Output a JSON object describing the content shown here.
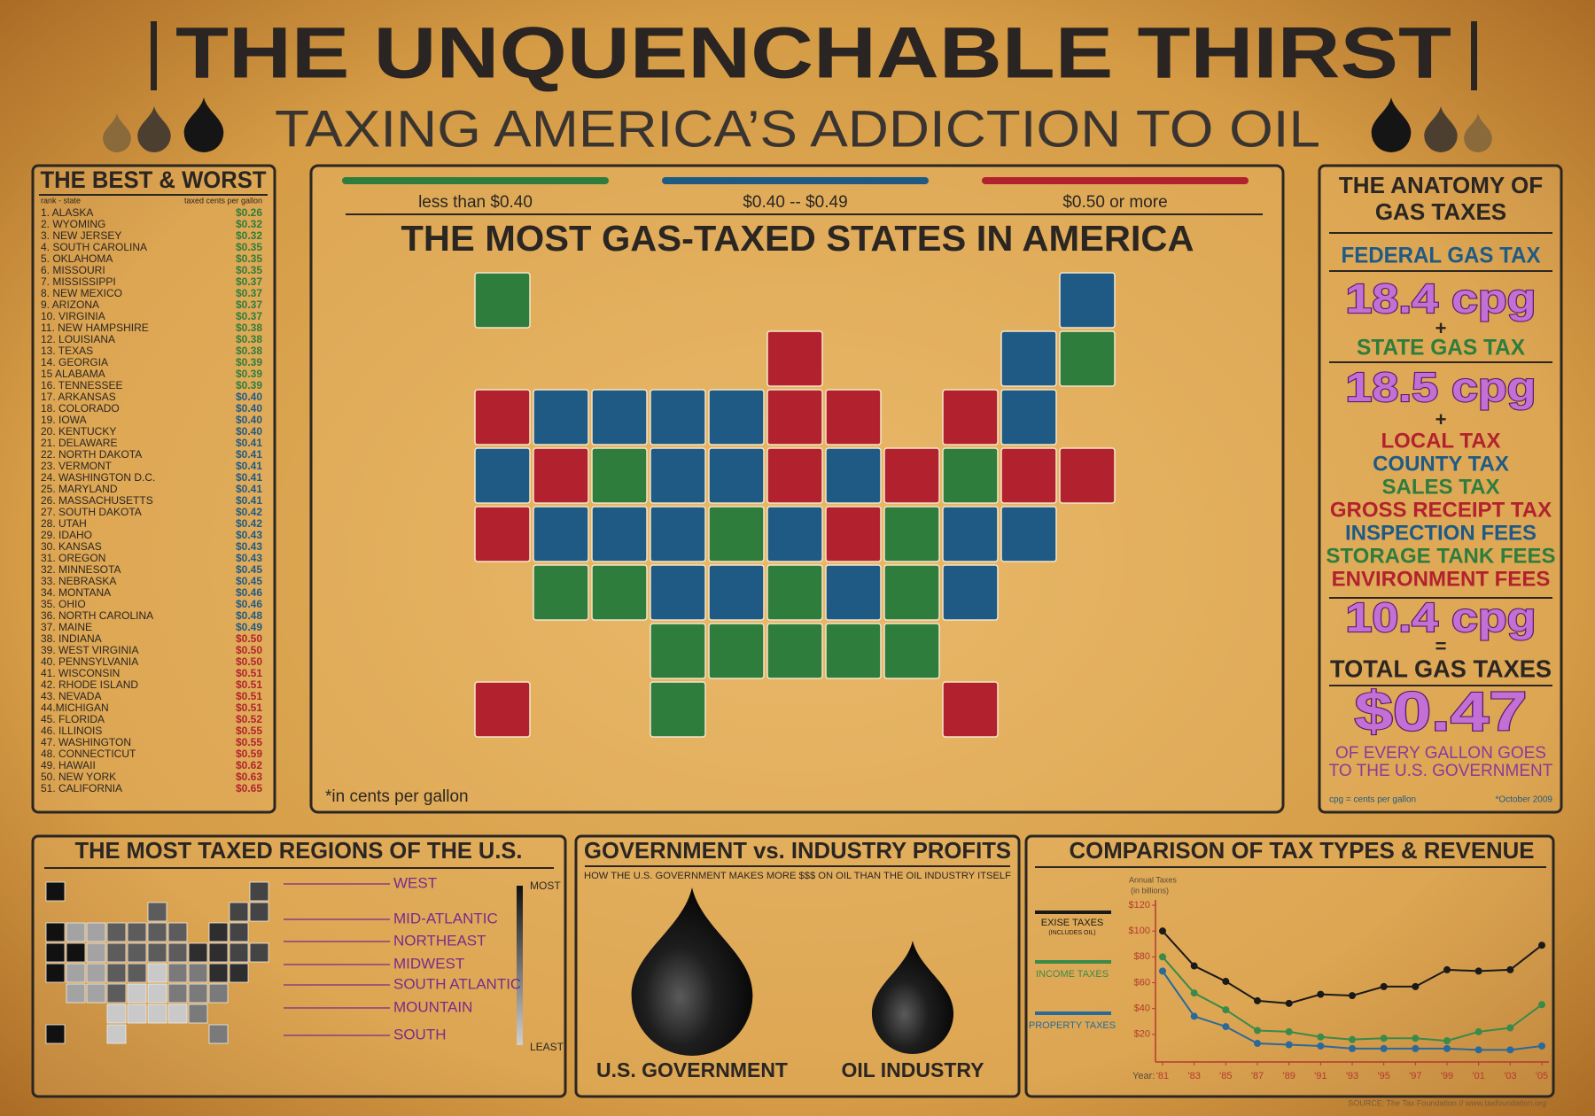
{
  "header": {
    "title": "THE UNQUENCHABLE THIRST",
    "subtitle": "TAXING AMERICA’S ADDICTION TO OIL"
  },
  "best_worst": {
    "title": "THE BEST & WORST",
    "col_rank": "rank - state",
    "col_value": "taxed cents per gallon",
    "groups": [
      {
        "rows": [
          [
            "1. ALASKA",
            "$0.26"
          ],
          [
            "2. WYOMING",
            "$0.32"
          ],
          [
            "3. NEW JERSEY",
            "$0.32"
          ],
          [
            "4. SOUTH CAROLINA",
            "$0.35"
          ],
          [
            "5. OKLAHOMA",
            "$0.35"
          ],
          [
            "6. MISSOURI",
            "$0.35"
          ],
          [
            "7. MISSISSIPPI",
            "$0.37"
          ],
          [
            "8. NEW MEXICO",
            "$0.37"
          ],
          [
            "9. ARIZONA",
            "$0.37"
          ],
          [
            "10. VIRGINIA",
            "$0.37"
          ],
          [
            "11. NEW HAMPSHIRE",
            "$0.38"
          ],
          [
            "12. LOUISIANA",
            "$0.38"
          ],
          [
            "13. TEXAS",
            "$0.38"
          ],
          [
            "14. GEORGIA",
            "$0.39"
          ],
          [
            "15 ALABAMA",
            "$0.39"
          ],
          [
            "16. TENNESSEE",
            "$0.39"
          ]
        ]
      },
      {
        "rows": [
          [
            "17. ARKANSAS",
            "$0.40"
          ],
          [
            "18. COLORADO",
            "$0.40"
          ],
          [
            "19. IOWA",
            "$0.40"
          ],
          [
            "20. KENTUCKY",
            "$0.40"
          ],
          [
            "21. DELAWARE",
            "$0.41"
          ],
          [
            "22. NORTH DAKOTA",
            "$0.41"
          ],
          [
            "23. VERMONT",
            "$0.41"
          ],
          [
            "24. WASHINGTON D.C.",
            "$0.41"
          ],
          [
            "25. MARYLAND",
            "$0.41"
          ],
          [
            "26. MASSACHUSETTS",
            "$0.41"
          ],
          [
            "27. SOUTH DAKOTA",
            "$0.42"
          ],
          [
            "28. UTAH",
            "$0.42"
          ],
          [
            "29. IDAHO",
            "$0.43"
          ],
          [
            "30. KANSAS",
            "$0.43"
          ],
          [
            "31. OREGON",
            "$0.43"
          ],
          [
            "32. MINNESOTA",
            "$0.45"
          ],
          [
            "33. NEBRASKA",
            "$0.45"
          ],
          [
            "34. MONTANA",
            "$0.46"
          ],
          [
            "35. OHIO",
            "$0.46"
          ],
          [
            "36. NORTH CAROLINA",
            "$0.48"
          ],
          [
            "37. MAINE",
            "$0.49"
          ]
        ]
      },
      {
        "rows": [
          [
            "38. INDIANA",
            "$0.50"
          ],
          [
            "39. WEST VIRGINIA",
            "$0.50"
          ],
          [
            "40. PENNSYLVANIA",
            "$0.50"
          ],
          [
            "41. WISCONSIN",
            "$0.51"
          ],
          [
            "42. RHODE ISLAND",
            "$0.51"
          ],
          [
            "43. NEVADA",
            "$0.51"
          ],
          [
            "44.MICHIGAN",
            "$0.51"
          ],
          [
            "45. FLORIDA",
            "$0.52"
          ],
          [
            "46. ILLINOIS",
            "$0.55"
          ],
          [
            "47. WASHINGTON",
            "$0.55"
          ],
          [
            "48. CONNECTICUT",
            "$0.59"
          ],
          [
            "49. HAWAII",
            "$0.62"
          ],
          [
            "50. NEW YORK",
            "$0.63"
          ],
          [
            "51. CALIFORNIA",
            "$0.65"
          ]
        ]
      }
    ]
  },
  "map": {
    "title": "THE MOST GAS-TAXED STATES IN AMERICA",
    "note": "*in cents per gallon",
    "legend": [
      {
        "label": "less than $0.40",
        "color": "#2e7d3c"
      },
      {
        "label": "$0.40 -- $0.49",
        "color": "#1f5a85"
      },
      {
        "label": "$0.50 or more",
        "color": "#b2222e"
      }
    ]
  },
  "anatomy": {
    "title_lines": [
      "THE ANATOMY OF",
      "GAS TAXES"
    ],
    "federal_label": "FEDERAL GAS TAX",
    "federal_value": "18.4 cpg",
    "plus": "+",
    "state_label": "STATE GAS TAX",
    "state_value": "18.5 cpg",
    "local_items": [
      {
        "text": "LOCAL TAX",
        "color": "#b2222e"
      },
      {
        "text": "COUNTY TAX",
        "color": "#1f5a85"
      },
      {
        "text": "SALES TAX",
        "color": "#2e7d3c"
      },
      {
        "text": "GROSS RECEIPT TAX",
        "color": "#b2222e"
      },
      {
        "text": "INSPECTION FEES",
        "color": "#1f5a85"
      },
      {
        "text": "STORAGE TANK FEES",
        "color": "#2e7d3c"
      },
      {
        "text": "ENVIRONMENT FEES",
        "color": "#b2222e"
      }
    ],
    "local_value": "10.4 cpg",
    "equals": "=",
    "total_label": "TOTAL GAS TAXES",
    "total_value": "$0.47",
    "total_note_lines": [
      "OF EVERY GALLON GOES",
      "TO THE U.S. GOVERNMENT"
    ],
    "footnote": "cpg = cents per gallon",
    "date": "*October 2009"
  },
  "regions": {
    "title": "THE MOST TAXED REGIONS OF THE U.S.",
    "labels": [
      "WEST",
      "MID-ATLANTIC",
      "NORTHEAST",
      "MIDWEST",
      "SOUTH ATLANTIC",
      "MOUNTAIN",
      "SOUTH"
    ],
    "scale_top": "MOST",
    "scale_bottom": "LEAST"
  },
  "profits": {
    "title": "GOVERNMENT vs. INDUSTRY PROFITS",
    "subtitle": "HOW THE U.S. GOVERNMENT MAKES MORE $$$ ON OIL THAN THE OIL INDUSTRY ITSELF",
    "left_label": "U.S. GOVERNMENT",
    "right_label": "OIL INDUSTRY"
  },
  "chart_data": {
    "type": "line",
    "title": "COMPARISON OF TAX TYPES & REVENUE",
    "y_label_lines": [
      "Annual Taxes",
      "(in billions)"
    ],
    "x_label": "Year:",
    "x": [
      1981,
      1983,
      1985,
      1987,
      1989,
      1991,
      1993,
      1995,
      1997,
      1999,
      2001,
      2003,
      2005
    ],
    "xlim": [
      1981,
      2005
    ],
    "xticks": [
      {
        "value": 1981,
        "label": "'81"
      },
      {
        "value": 1983,
        "label": "'83"
      },
      {
        "value": 1985,
        "label": "'85"
      },
      {
        "value": 1987,
        "label": "'87"
      },
      {
        "value": 1989,
        "label": "'89"
      },
      {
        "value": 1991,
        "label": "'91"
      },
      {
        "value": 1993,
        "label": "'93"
      },
      {
        "value": 1995,
        "label": "'95"
      },
      {
        "value": 1997,
        "label": "'97"
      },
      {
        "value": 1999,
        "label": "'99"
      },
      {
        "value": 2001,
        "label": "'01"
      },
      {
        "value": 2003,
        "label": "'03"
      },
      {
        "value": 2005,
        "label": "'05"
      }
    ],
    "ylim": [
      0,
      120
    ],
    "yticks": [
      {
        "value": 20,
        "label": "$20"
      },
      {
        "value": 40,
        "label": "$40"
      },
      {
        "value": 60,
        "label": "$60"
      },
      {
        "value": 80,
        "label": "$80"
      },
      {
        "value": 100,
        "label": "$100"
      },
      {
        "value": 120,
        "label": "$120"
      }
    ],
    "series": [
      {
        "name": "EXISE TAXES",
        "legend_note": "(INCLUDES OIL)",
        "color": "#1a1a1a",
        "values": [
          100,
          73,
          61,
          46,
          44,
          51,
          50,
          57,
          57,
          70,
          69,
          70,
          89
        ]
      },
      {
        "name": "INCOME TAXES",
        "color": "#3a8a4a",
        "values": [
          80,
          52,
          39,
          23,
          22,
          18,
          16,
          17,
          17,
          15,
          22,
          25,
          43
        ]
      },
      {
        "name": "PROPERTY TAXES",
        "color": "#2a6a9a",
        "values": [
          69,
          34,
          26,
          13,
          12,
          11,
          9,
          9,
          9,
          9,
          8,
          8,
          11
        ]
      }
    ],
    "source": "SOURCE: The Tax Foundation // www.taxfoundation.org"
  }
}
